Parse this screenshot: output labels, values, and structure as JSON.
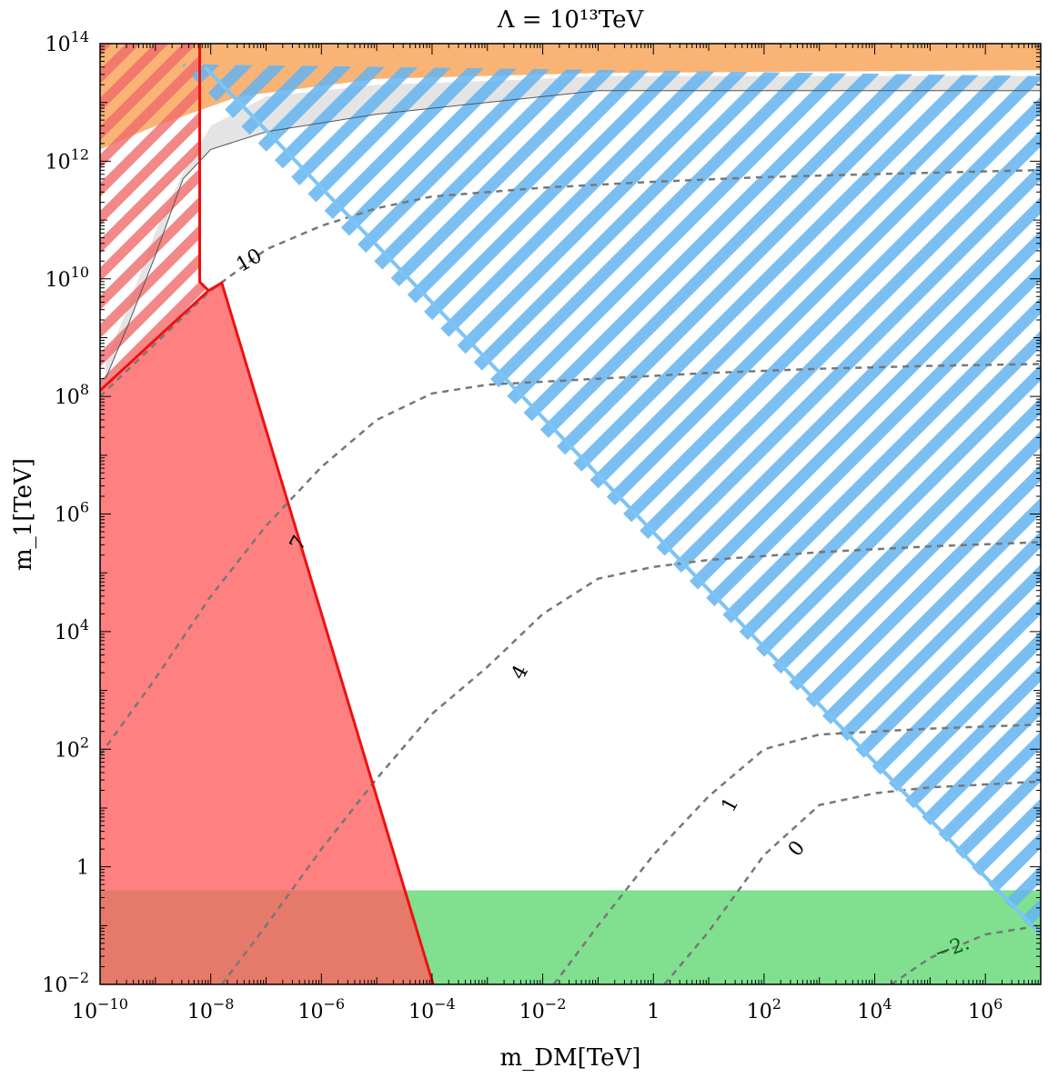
{
  "chart_data": {
    "type": "contour",
    "title": "Λ = 10¹³TeV",
    "xlabel": "m_DM[TeV]",
    "ylabel": "m_1[TeV]",
    "x_scale": "log",
    "y_scale": "log",
    "x_log_range": [
      -10,
      7
    ],
    "y_log_range": [
      -2,
      14
    ],
    "x_ticks": [
      {
        "exp": -10,
        "label": "10",
        "sup": "−10"
      },
      {
        "exp": -8,
        "label": "10",
        "sup": "−8"
      },
      {
        "exp": -6,
        "label": "10",
        "sup": "−6"
      },
      {
        "exp": -4,
        "label": "10",
        "sup": "−4"
      },
      {
        "exp": -2,
        "label": "10",
        "sup": "−2"
      },
      {
        "exp": 0,
        "label": "1",
        "sup": ""
      },
      {
        "exp": 2,
        "label": "10",
        "sup": "2"
      },
      {
        "exp": 4,
        "label": "10",
        "sup": "4"
      },
      {
        "exp": 6,
        "label": "10",
        "sup": "6"
      }
    ],
    "y_ticks": [
      {
        "exp": -2,
        "label": "10",
        "sup": "−2"
      },
      {
        "exp": 0,
        "label": "1",
        "sup": ""
      },
      {
        "exp": 2,
        "label": "10",
        "sup": "2"
      },
      {
        "exp": 4,
        "label": "10",
        "sup": "4"
      },
      {
        "exp": 6,
        "label": "10",
        "sup": "6"
      },
      {
        "exp": 8,
        "label": "10",
        "sup": "8"
      },
      {
        "exp": 10,
        "label": "10",
        "sup": "10"
      },
      {
        "exp": 12,
        "label": "10",
        "sup": "12"
      },
      {
        "exp": 14,
        "label": "10",
        "sup": "14"
      }
    ],
    "regions": [
      {
        "name": "green-band",
        "color": "#55d66a",
        "opacity": 0.75,
        "points": [
          [
            -10,
            -2
          ],
          [
            7,
            -2
          ],
          [
            7,
            -0.4
          ],
          [
            -10,
            -0.4
          ]
        ]
      },
      {
        "name": "orange-band",
        "color": "#f79a45",
        "opacity": 0.75,
        "points": [
          [
            -10,
            14
          ],
          [
            7,
            14
          ],
          [
            7,
            13.55
          ],
          [
            -1,
            13.5
          ],
          [
            -5,
            13.4
          ],
          [
            -7.5,
            13.1
          ],
          [
            -9,
            12.6
          ],
          [
            -10,
            12.2
          ]
        ]
      },
      {
        "name": "gray-region",
        "color": "#bbbbbb",
        "opacity": 0.4,
        "points": [
          [
            -9.9,
            8.6
          ],
          [
            -9.5,
            9.5
          ],
          [
            -9,
            10.8
          ],
          [
            -8.5,
            11.8
          ],
          [
            -8,
            12.6
          ],
          [
            -7,
            13.1
          ],
          [
            -5,
            13.3
          ],
          [
            -2,
            13.4
          ],
          [
            -1,
            13.45
          ],
          [
            7,
            13.45
          ],
          [
            7,
            13.2
          ],
          [
            -1,
            13.2
          ],
          [
            -5,
            12.8
          ],
          [
            -7,
            12.5
          ],
          [
            -8,
            12.2
          ],
          [
            -8.5,
            11.7
          ],
          [
            -9,
            10.4
          ],
          [
            -9.5,
            9.2
          ],
          [
            -9.9,
            8.3
          ]
        ]
      },
      {
        "name": "red-region",
        "color": "#ff6060",
        "opacity": 0.8,
        "points": [
          [
            -10,
            -2
          ],
          [
            -10,
            8.1
          ],
          [
            -8.04,
            9.8
          ],
          [
            -7.8,
            9.93
          ],
          [
            -3.98,
            -2
          ]
        ]
      },
      {
        "name": "red-hatched",
        "color": "#ff6060",
        "opacity": 0.8,
        "points": [
          [
            -10,
            8.1
          ],
          [
            -10,
            14
          ],
          [
            -8.2,
            14
          ],
          [
            -8.2,
            9.95
          ],
          [
            -8.04,
            9.8
          ]
        ]
      },
      {
        "name": "blue-hatched",
        "color": "#64b4f0",
        "opacity": 0.85,
        "points": [
          [
            -8.5,
            13.65
          ],
          [
            7,
            13.45
          ],
          [
            7,
            -1.2
          ],
          [
            -8.5,
            13.6
          ]
        ]
      }
    ],
    "boundaries": [
      {
        "name": "red-boundary",
        "color": "#ee1111",
        "width": 3,
        "points": [
          [
            -10,
            8.1
          ],
          [
            -8.04,
            9.8
          ],
          [
            -7.8,
            9.93
          ],
          [
            -3.98,
            -2
          ]
        ]
      },
      {
        "name": "red-vertical",
        "color": "#ee1111",
        "width": 3,
        "points": [
          [
            -8.2,
            14
          ],
          [
            -8.2,
            9.95
          ],
          [
            -8.04,
            9.8
          ]
        ]
      },
      {
        "name": "blue-boundary",
        "color": "#7cc4f6",
        "width": 4,
        "points": [
          [
            -8.1,
            13.6
          ],
          [
            7,
            -1.15
          ]
        ]
      }
    ],
    "contours": [
      {
        "label": "10",
        "label_x": -7.3,
        "label_y": 10.3,
        "label_angle": -30,
        "label_color": "#000",
        "points": [
          [
            -10,
            8.0
          ],
          [
            -9,
            8.9
          ],
          [
            -8,
            9.8
          ],
          [
            -7,
            10.5
          ],
          [
            -6,
            10.9
          ],
          [
            -5,
            11.2
          ],
          [
            -4,
            11.4
          ],
          [
            -2,
            11.55
          ],
          [
            0,
            11.65
          ],
          [
            2,
            11.73
          ],
          [
            4,
            11.78
          ],
          [
            7,
            11.85
          ]
        ]
      },
      {
        "label": "7",
        "label_x": -6.4,
        "label_y": 5.5,
        "label_angle": -62,
        "label_color": "#000",
        "points": [
          [
            -10,
            1.9
          ],
          [
            -9,
            3.2
          ],
          [
            -8,
            4.6
          ],
          [
            -7,
            5.8
          ],
          [
            -6,
            6.8
          ],
          [
            -5,
            7.6
          ],
          [
            -4,
            8.05
          ],
          [
            -3,
            8.2
          ],
          [
            -1,
            8.3
          ],
          [
            1,
            8.4
          ],
          [
            3,
            8.47
          ],
          [
            5,
            8.52
          ],
          [
            7,
            8.55
          ]
        ]
      },
      {
        "label": "4",
        "label_x": -2.4,
        "label_y": 3.3,
        "label_angle": -62,
        "label_color": "#000",
        "points": [
          [
            -7.8,
            -2
          ],
          [
            -7,
            -1.0
          ],
          [
            -6,
            0.3
          ],
          [
            -5,
            1.5
          ],
          [
            -4,
            2.6
          ],
          [
            -3,
            3.4
          ],
          [
            -2,
            4.3
          ],
          [
            -1,
            4.9
          ],
          [
            0,
            5.1
          ],
          [
            1,
            5.22
          ],
          [
            3,
            5.35
          ],
          [
            5,
            5.45
          ],
          [
            7,
            5.52
          ]
        ]
      },
      {
        "label": "1",
        "label_x": 1.4,
        "label_y": 1.05,
        "label_angle": -62,
        "label_color": "#000",
        "points": [
          [
            -1.8,
            -2
          ],
          [
            -1,
            -1.0
          ],
          [
            0,
            0.2
          ],
          [
            1,
            1.2
          ],
          [
            2,
            2.0
          ],
          [
            3,
            2.25
          ],
          [
            5,
            2.35
          ],
          [
            7,
            2.42
          ]
        ]
      },
      {
        "label": "0",
        "label_x": 2.6,
        "label_y": 0.3,
        "label_angle": -50,
        "label_color": "#000",
        "points": [
          [
            0.2,
            -2
          ],
          [
            1,
            -1.1
          ],
          [
            2,
            0.2
          ],
          [
            3,
            1.05
          ],
          [
            4,
            1.25
          ],
          [
            5,
            1.35
          ],
          [
            7,
            1.45
          ]
        ]
      },
      {
        "label": "−2.",
        "label_x": 5.4,
        "label_y": -1.4,
        "label_angle": -20,
        "label_color": "#0b5e18",
        "points": [
          [
            4.3,
            -2
          ],
          [
            5,
            -1.55
          ],
          [
            6,
            -1.15
          ],
          [
            7,
            -1.0
          ]
        ]
      }
    ]
  }
}
